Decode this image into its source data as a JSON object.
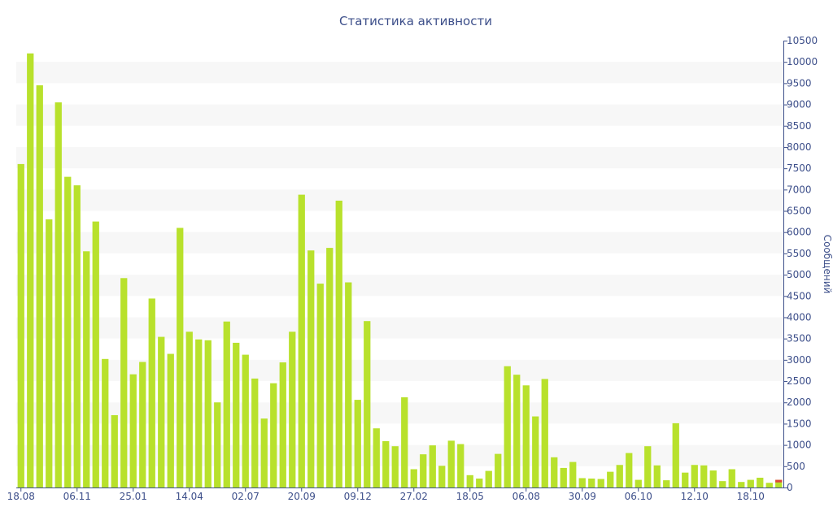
{
  "chart_data": {
    "type": "bar",
    "title": "Статистика активности",
    "ylabel": "Сообщений",
    "ylim": [
      0,
      10500
    ],
    "y_ticks": [
      0,
      500,
      1000,
      1500,
      2000,
      2500,
      3000,
      3500,
      4000,
      4500,
      5000,
      5500,
      6000,
      6500,
      7000,
      7500,
      8000,
      8500,
      9000,
      9500,
      10000,
      10500
    ],
    "x_tick_labels": [
      {
        "index": 0,
        "label": "18.08"
      },
      {
        "index": 6,
        "label": "06.11"
      },
      {
        "index": 12,
        "label": "25.01"
      },
      {
        "index": 18,
        "label": "14.04"
      },
      {
        "index": 24,
        "label": "02.07"
      },
      {
        "index": 30,
        "label": "20.09"
      },
      {
        "index": 36,
        "label": "09.12"
      },
      {
        "index": 42,
        "label": "27.02"
      },
      {
        "index": 48,
        "label": "18.05"
      },
      {
        "index": 54,
        "label": "06.08"
      },
      {
        "index": 60,
        "label": "30.09"
      },
      {
        "index": 66,
        "label": "06.10"
      },
      {
        "index": 72,
        "label": "12.10"
      },
      {
        "index": 78,
        "label": "18.10"
      }
    ],
    "y_axis_position": "right",
    "grid": "horizontal bands",
    "bar_color": "#b8e12c",
    "accent_color": "#e0463a",
    "values": [
      7600,
      10200,
      9450,
      6300,
      9050,
      7300,
      7100,
      5550,
      6250,
      3020,
      1700,
      4920,
      2660,
      2950,
      4440,
      3540,
      3140,
      6100,
      3660,
      3480,
      3460,
      2000,
      3900,
      3400,
      3120,
      2560,
      1620,
      2450,
      2940,
      3660,
      6880,
      5570,
      4790,
      5630,
      6740,
      4820,
      2060,
      3910,
      1390,
      1090,
      970,
      2120,
      430,
      780,
      990,
      510,
      1100,
      1020,
      290,
      210,
      390,
      790,
      2850,
      2650,
      2400,
      1670,
      2550,
      710,
      460,
      600,
      220,
      210,
      200,
      370,
      530,
      810,
      180,
      970,
      520,
      170,
      1510,
      350,
      530,
      520,
      400,
      150,
      430,
      130,
      180,
      230,
      110,
      180
    ],
    "last_bar_accent_value": 60
  }
}
